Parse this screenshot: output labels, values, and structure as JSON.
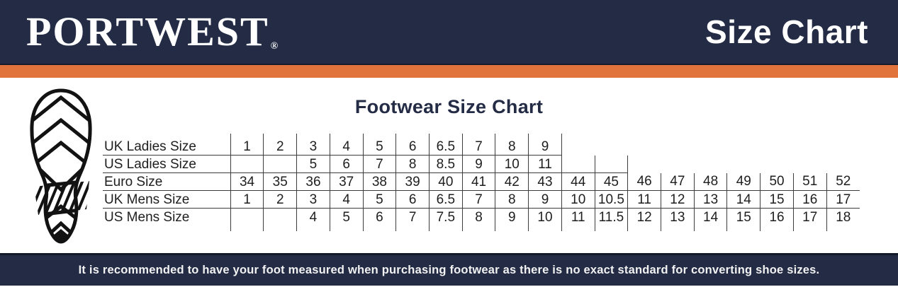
{
  "header": {
    "brand": "PORTWEST",
    "brand_mark": "®",
    "page_title": "Size Chart"
  },
  "main": {
    "title": "Footwear Size Chart"
  },
  "icons": {
    "decoration": "boot-sole-print-icon"
  },
  "size_table": {
    "columns": 19,
    "spacer_top_cells": 10,
    "spacer_bottom_cells": 19,
    "rows": [
      {
        "label": "UK Ladies Size",
        "values": [
          "1",
          "2",
          "3",
          "4",
          "5",
          "6",
          "6.5",
          "7",
          "8",
          "9",
          "",
          "",
          "",
          "",
          "",
          "",
          "",
          "",
          ""
        ],
        "bordered_cells": 10,
        "bottom_cells": 10
      },
      {
        "label": "US Ladies Size",
        "values": [
          "",
          "",
          "5",
          "6",
          "7",
          "8",
          "8.5",
          "9",
          "10",
          "11",
          "",
          "",
          "",
          "",
          "",
          "",
          "",
          "",
          ""
        ],
        "bordered_cells": 12,
        "bottom_cells": 12
      },
      {
        "label": "Euro Size",
        "values": [
          "34",
          "35",
          "36",
          "37",
          "38",
          "39",
          "40",
          "41",
          "42",
          "43",
          "44",
          "45",
          "46",
          "47",
          "48",
          "49",
          "50",
          "51",
          "52"
        ],
        "bordered_cells": 19,
        "bottom_cells": 19
      },
      {
        "label": "UK Mens Size",
        "values": [
          "1",
          "2",
          "3",
          "4",
          "5",
          "6",
          "6.5",
          "7",
          "8",
          "9",
          "10",
          "10.5",
          "11",
          "12",
          "13",
          "14",
          "15",
          "16",
          "17"
        ],
        "bordered_cells": 19,
        "bottom_cells": 19
      },
      {
        "label": "US Mens Size",
        "values": [
          "",
          "",
          "4",
          "5",
          "6",
          "7",
          "7.5",
          "8",
          "9",
          "10",
          "11",
          "11.5",
          "12",
          "13",
          "14",
          "15",
          "16",
          "17",
          "18"
        ],
        "bordered_cells": 19,
        "bottom_cells": 0
      }
    ]
  },
  "footer": {
    "note": "It is recommended to have your foot measured when purchasing footwear as there is no exact standard for converting shoe sizes."
  },
  "colors": {
    "navy": "#232b45",
    "orange": "#e0743c",
    "line": "#3c3c3c",
    "ink": "#1e1e1e",
    "paper": "#ffffff",
    "footer_text": "#f2f2f2"
  }
}
